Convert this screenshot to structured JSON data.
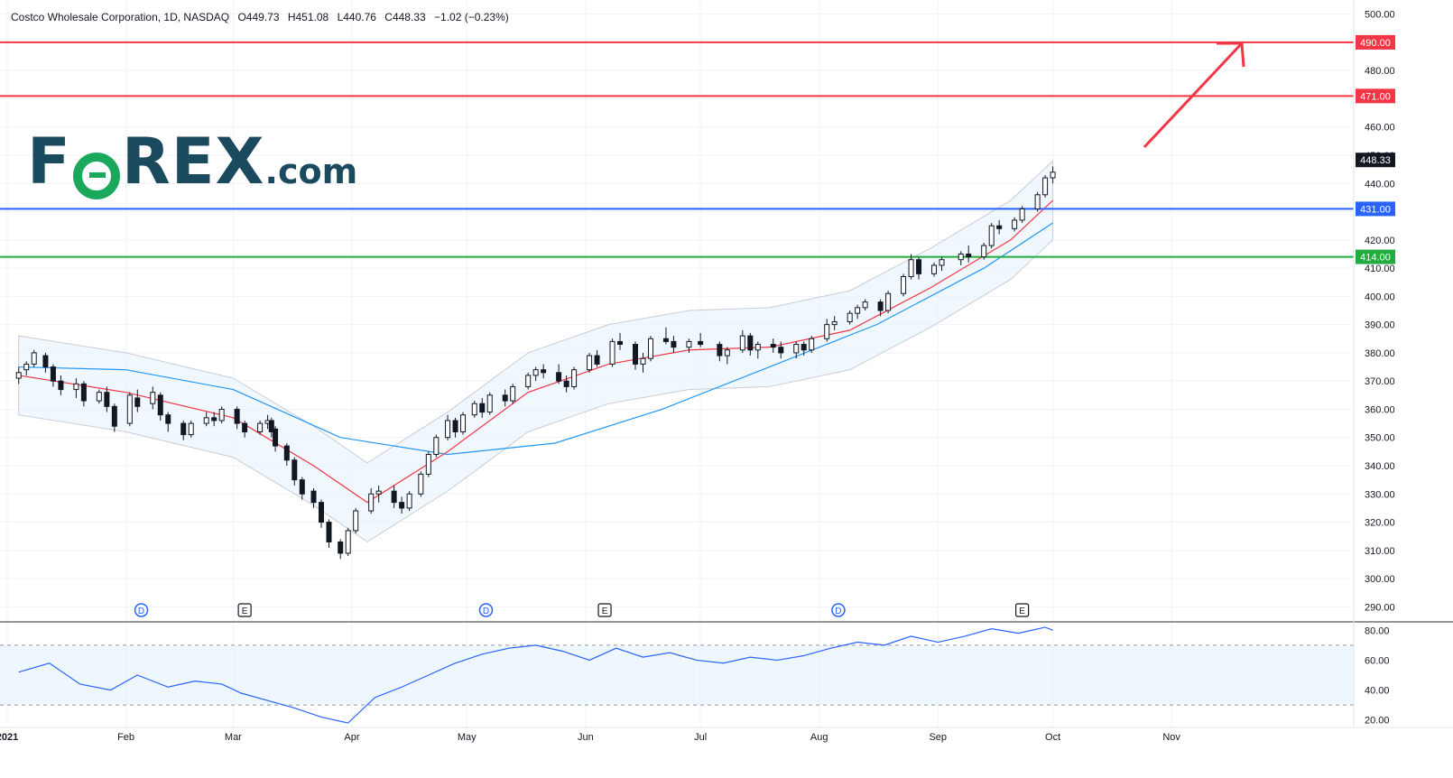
{
  "header": {
    "symbol": "Costco Wholesale Corporation, 1D, NASDAQ",
    "open": "O449.73",
    "high": "H451.08",
    "low": "L440.76",
    "close": "C448.33",
    "change": "−1.02 (−0.23%)"
  },
  "logo": {
    "text_pre": "F",
    "text_post": "REX",
    "domain": ".com"
  },
  "colors": {
    "up_body": "#ffffff",
    "down_body": "#131722",
    "ma20": "#f23645",
    "ma50": "#2196f3",
    "band": "#e3f2fd",
    "level_red": "#f23645",
    "level_blue": "#2962ff",
    "level_green": "#22ab3f",
    "rsi_line": "#2962ff",
    "rsi_fill": "#e3f2fd",
    "logo_text": "#1b4a5e",
    "logo_accent": "#1aa85c"
  },
  "chart_data": {
    "type": "candlestick",
    "price_axis": {
      "range": [
        285,
        505
      ],
      "ticks": [
        290,
        300,
        310,
        320,
        330,
        340,
        350,
        360,
        370,
        380,
        390,
        400,
        410,
        420,
        430,
        440,
        450,
        460,
        470,
        480,
        490,
        500
      ],
      "tick_labels": [
        "290.00",
        "300.00",
        "310.00",
        "320.00",
        "330.00",
        "340.00",
        "350.00",
        "360.00",
        "370.00",
        "380.00",
        "390.00",
        "400.00",
        "410.00",
        "420.00",
        "430.00",
        "440.00",
        "450.00",
        "460.00",
        "470.00",
        "480.00",
        "490.00",
        "500.00"
      ]
    },
    "x_axis": {
      "start": "2021-01-01",
      "end": "2021-11-25",
      "ticks": [
        "2021-01-01",
        "2021-02-01",
        "2021-03-01",
        "2021-04-01",
        "2021-05-01",
        "2021-06-01",
        "2021-07-01",
        "2021-08-01",
        "2021-09-01",
        "2021-10-01",
        "2021-11-01"
      ],
      "tick_labels": [
        "2021",
        "Feb",
        "Mar",
        "Apr",
        "May",
        "Jun",
        "Jul",
        "Aug",
        "Sep",
        "Oct",
        "Nov"
      ]
    },
    "candles": [
      {
        "d": "2021-01-04",
        "o": 371,
        "h": 375,
        "l": 369,
        "c": 373
      },
      {
        "d": "2021-01-06",
        "o": 374,
        "h": 377,
        "l": 372,
        "c": 376
      },
      {
        "d": "2021-01-08",
        "o": 376,
        "h": 381,
        "l": 375,
        "c": 380
      },
      {
        "d": "2021-01-11",
        "o": 379,
        "h": 380,
        "l": 373,
        "c": 375
      },
      {
        "d": "2021-01-13",
        "o": 375,
        "h": 376,
        "l": 368,
        "c": 370
      },
      {
        "d": "2021-01-15",
        "o": 370,
        "h": 372,
        "l": 365,
        "c": 367
      },
      {
        "d": "2021-01-19",
        "o": 367,
        "h": 371,
        "l": 364,
        "c": 369
      },
      {
        "d": "2021-01-21",
        "o": 369,
        "h": 370,
        "l": 361,
        "c": 363
      },
      {
        "d": "2021-01-25",
        "o": 363,
        "h": 367,
        "l": 362,
        "c": 366
      },
      {
        "d": "2021-01-27",
        "o": 366,
        "h": 368,
        "l": 359,
        "c": 361
      },
      {
        "d": "2021-01-29",
        "o": 361,
        "h": 362,
        "l": 352,
        "c": 354
      },
      {
        "d": "2021-02-02",
        "o": 355,
        "h": 366,
        "l": 354,
        "c": 365
      },
      {
        "d": "2021-02-04",
        "o": 364,
        "h": 367,
        "l": 359,
        "c": 361
      },
      {
        "d": "2021-02-08",
        "o": 362,
        "h": 368,
        "l": 360,
        "c": 366
      },
      {
        "d": "2021-02-10",
        "o": 365,
        "h": 366,
        "l": 356,
        "c": 358
      },
      {
        "d": "2021-02-12",
        "o": 358,
        "h": 359,
        "l": 352,
        "c": 355
      },
      {
        "d": "2021-02-16",
        "o": 355,
        "h": 356,
        "l": 349,
        "c": 351
      },
      {
        "d": "2021-02-18",
        "o": 351,
        "h": 356,
        "l": 350,
        "c": 355
      },
      {
        "d": "2021-02-22",
        "o": 355,
        "h": 359,
        "l": 354,
        "c": 357
      },
      {
        "d": "2021-02-24",
        "o": 357,
        "h": 359,
        "l": 354,
        "c": 356
      },
      {
        "d": "2021-02-26",
        "o": 356,
        "h": 361,
        "l": 355,
        "c": 360
      },
      {
        "d": "2021-03-02",
        "o": 360,
        "h": 361,
        "l": 353,
        "c": 355
      },
      {
        "d": "2021-03-04",
        "o": 355,
        "h": 356,
        "l": 350,
        "c": 352
      },
      {
        "d": "2021-03-08",
        "o": 352,
        "h": 356,
        "l": 351,
        "c": 355
      },
      {
        "d": "2021-03-10",
        "o": 355,
        "h": 358,
        "l": 353,
        "c": 356
      },
      {
        "d": "2021-03-11",
        "o": 356,
        "h": 357,
        "l": 350,
        "c": 352
      },
      {
        "d": "2021-03-12",
        "o": 353,
        "h": 354,
        "l": 345,
        "c": 347
      },
      {
        "d": "2021-03-15",
        "o": 347,
        "h": 348,
        "l": 340,
        "c": 342
      },
      {
        "d": "2021-03-17",
        "o": 342,
        "h": 343,
        "l": 333,
        "c": 335
      },
      {
        "d": "2021-03-19",
        "o": 335,
        "h": 336,
        "l": 328,
        "c": 330
      },
      {
        "d": "2021-03-22",
        "o": 331,
        "h": 332,
        "l": 325,
        "c": 327
      },
      {
        "d": "2021-03-24",
        "o": 327,
        "h": 328,
        "l": 318,
        "c": 320
      },
      {
        "d": "2021-03-26",
        "o": 320,
        "h": 321,
        "l": 311,
        "c": 313
      },
      {
        "d": "2021-03-29",
        "o": 313,
        "h": 314,
        "l": 307,
        "c": 309
      },
      {
        "d": "2021-03-31",
        "o": 309,
        "h": 318,
        "l": 308,
        "c": 317
      },
      {
        "d": "2021-04-02",
        "o": 317,
        "h": 325,
        "l": 316,
        "c": 324
      },
      {
        "d": "2021-04-06",
        "o": 324,
        "h": 332,
        "l": 323,
        "c": 330
      },
      {
        "d": "2021-04-08",
        "o": 330,
        "h": 333,
        "l": 327,
        "c": 331
      },
      {
        "d": "2021-04-12",
        "o": 331,
        "h": 333,
        "l": 325,
        "c": 327
      },
      {
        "d": "2021-04-14",
        "o": 327,
        "h": 329,
        "l": 323,
        "c": 325
      },
      {
        "d": "2021-04-16",
        "o": 325,
        "h": 331,
        "l": 324,
        "c": 330
      },
      {
        "d": "2021-04-19",
        "o": 330,
        "h": 338,
        "l": 329,
        "c": 337
      },
      {
        "d": "2021-04-21",
        "o": 337,
        "h": 345,
        "l": 336,
        "c": 344
      },
      {
        "d": "2021-04-23",
        "o": 344,
        "h": 351,
        "l": 343,
        "c": 350
      },
      {
        "d": "2021-04-26",
        "o": 350,
        "h": 358,
        "l": 349,
        "c": 356
      },
      {
        "d": "2021-04-28",
        "o": 356,
        "h": 357,
        "l": 350,
        "c": 352
      },
      {
        "d": "2021-04-30",
        "o": 352,
        "h": 359,
        "l": 351,
        "c": 358
      },
      {
        "d": "2021-05-03",
        "o": 358,
        "h": 363,
        "l": 357,
        "c": 362
      },
      {
        "d": "2021-05-05",
        "o": 362,
        "h": 364,
        "l": 357,
        "c": 359
      },
      {
        "d": "2021-05-07",
        "o": 359,
        "h": 366,
        "l": 358,
        "c": 365
      },
      {
        "d": "2021-05-11",
        "o": 365,
        "h": 367,
        "l": 361,
        "c": 363
      },
      {
        "d": "2021-05-13",
        "o": 363,
        "h": 369,
        "l": 362,
        "c": 368
      },
      {
        "d": "2021-05-17",
        "o": 368,
        "h": 373,
        "l": 367,
        "c": 372
      },
      {
        "d": "2021-05-19",
        "o": 372,
        "h": 375,
        "l": 370,
        "c": 374
      },
      {
        "d": "2021-05-21",
        "o": 374,
        "h": 376,
        "l": 371,
        "c": 373
      },
      {
        "d": "2021-05-25",
        "o": 373,
        "h": 376,
        "l": 369,
        "c": 370
      },
      {
        "d": "2021-05-27",
        "o": 370,
        "h": 372,
        "l": 366,
        "c": 368
      },
      {
        "d": "2021-05-29",
        "o": 368,
        "h": 375,
        "l": 367,
        "c": 374
      },
      {
        "d": "2021-06-02",
        "o": 374,
        "h": 380,
        "l": 373,
        "c": 379
      },
      {
        "d": "2021-06-04",
        "o": 379,
        "h": 381,
        "l": 375,
        "c": 376
      },
      {
        "d": "2021-06-08",
        "o": 376,
        "h": 385,
        "l": 375,
        "c": 384
      },
      {
        "d": "2021-06-10",
        "o": 384,
        "h": 387,
        "l": 381,
        "c": 383
      },
      {
        "d": "2021-06-14",
        "o": 383,
        "h": 384,
        "l": 374,
        "c": 376
      },
      {
        "d": "2021-06-16",
        "o": 376,
        "h": 380,
        "l": 373,
        "c": 378
      },
      {
        "d": "2021-06-18",
        "o": 378,
        "h": 386,
        "l": 377,
        "c": 385
      },
      {
        "d": "2021-06-22",
        "o": 385,
        "h": 389,
        "l": 383,
        "c": 384
      },
      {
        "d": "2021-06-24",
        "o": 384,
        "h": 386,
        "l": 380,
        "c": 382
      },
      {
        "d": "2021-06-28",
        "o": 382,
        "h": 385,
        "l": 380,
        "c": 384
      },
      {
        "d": "2021-07-01",
        "o": 384,
        "h": 387,
        "l": 382,
        "c": 383
      },
      {
        "d": "2021-07-06",
        "o": 383,
        "h": 384,
        "l": 377,
        "c": 379
      },
      {
        "d": "2021-07-08",
        "o": 379,
        "h": 382,
        "l": 376,
        "c": 381
      },
      {
        "d": "2021-07-12",
        "o": 381,
        "h": 388,
        "l": 380,
        "c": 386
      },
      {
        "d": "2021-07-14",
        "o": 386,
        "h": 387,
        "l": 379,
        "c": 381
      },
      {
        "d": "2021-07-16",
        "o": 381,
        "h": 384,
        "l": 378,
        "c": 383
      },
      {
        "d": "2021-07-20",
        "o": 383,
        "h": 385,
        "l": 380,
        "c": 382
      },
      {
        "d": "2021-07-22",
        "o": 382,
        "h": 384,
        "l": 378,
        "c": 380
      },
      {
        "d": "2021-07-26",
        "o": 380,
        "h": 384,
        "l": 378,
        "c": 383
      },
      {
        "d": "2021-07-28",
        "o": 383,
        "h": 384,
        "l": 379,
        "c": 381
      },
      {
        "d": "2021-07-30",
        "o": 381,
        "h": 386,
        "l": 380,
        "c": 385
      },
      {
        "d": "2021-08-03",
        "o": 385,
        "h": 392,
        "l": 384,
        "c": 390
      },
      {
        "d": "2021-08-05",
        "o": 390,
        "h": 393,
        "l": 388,
        "c": 391
      },
      {
        "d": "2021-08-09",
        "o": 391,
        "h": 395,
        "l": 390,
        "c": 394
      },
      {
        "d": "2021-08-11",
        "o": 394,
        "h": 397,
        "l": 392,
        "c": 396
      },
      {
        "d": "2021-08-13",
        "o": 396,
        "h": 399,
        "l": 395,
        "c": 398
      },
      {
        "d": "2021-08-17",
        "o": 398,
        "h": 399,
        "l": 393,
        "c": 395
      },
      {
        "d": "2021-08-19",
        "o": 395,
        "h": 402,
        "l": 394,
        "c": 401
      },
      {
        "d": "2021-08-23",
        "o": 401,
        "h": 408,
        "l": 400,
        "c": 407
      },
      {
        "d": "2021-08-25",
        "o": 407,
        "h": 415,
        "l": 406,
        "c": 413
      },
      {
        "d": "2021-08-27",
        "o": 413,
        "h": 414,
        "l": 406,
        "c": 408
      },
      {
        "d": "2021-08-31",
        "o": 408,
        "h": 412,
        "l": 407,
        "c": 411
      },
      {
        "d": "2021-09-02",
        "o": 411,
        "h": 414,
        "l": 409,
        "c": 413
      },
      {
        "d": "2021-09-07",
        "o": 413,
        "h": 416,
        "l": 411,
        "c": 415
      },
      {
        "d": "2021-09-09",
        "o": 415,
        "h": 418,
        "l": 412,
        "c": 414
      },
      {
        "d": "2021-09-13",
        "o": 414,
        "h": 419,
        "l": 413,
        "c": 418
      },
      {
        "d": "2021-09-15",
        "o": 418,
        "h": 426,
        "l": 417,
        "c": 425
      },
      {
        "d": "2021-09-17",
        "o": 425,
        "h": 427,
        "l": 422,
        "c": 424
      },
      {
        "d": "2021-09-21",
        "o": 424,
        "h": 428,
        "l": 423,
        "c": 427
      },
      {
        "d": "2021-09-23",
        "o": 427,
        "h": 432,
        "l": 426,
        "c": 431
      },
      {
        "d": "2021-09-27",
        "o": 431,
        "h": 437,
        "l": 430,
        "c": 436
      },
      {
        "d": "2021-09-29",
        "o": 436,
        "h": 443,
        "l": 435,
        "c": 442
      },
      {
        "d": "2021-10-01",
        "o": 442,
        "h": 446,
        "l": 440,
        "c": 444
      }
    ],
    "ma20": [
      [
        "2021-01-04",
        372
      ],
      [
        "2021-02-01",
        366
      ],
      [
        "2021-03-01",
        357
      ],
      [
        "2021-03-22",
        340
      ],
      [
        "2021-04-05",
        327
      ],
      [
        "2021-04-26",
        345
      ],
      [
        "2021-05-17",
        366
      ],
      [
        "2021-06-07",
        376
      ],
      [
        "2021-06-28",
        381
      ],
      [
        "2021-07-19",
        382
      ],
      [
        "2021-08-09",
        388
      ],
      [
        "2021-08-30",
        403
      ],
      [
        "2021-09-20",
        420
      ],
      [
        "2021-10-01",
        434
      ]
    ],
    "ma50": [
      [
        "2021-01-04",
        375
      ],
      [
        "2021-02-01",
        374
      ],
      [
        "2021-03-01",
        367
      ],
      [
        "2021-03-29",
        350
      ],
      [
        "2021-04-26",
        344
      ],
      [
        "2021-05-24",
        348
      ],
      [
        "2021-06-21",
        360
      ],
      [
        "2021-07-19",
        375
      ],
      [
        "2021-08-16",
        390
      ],
      [
        "2021-09-13",
        410
      ],
      [
        "2021-10-01",
        426
      ]
    ],
    "levels": [
      {
        "value": 490,
        "label": "490.00",
        "color": "#f23645"
      },
      {
        "value": 471,
        "label": "471.00",
        "color": "#f23645"
      },
      {
        "value": 431,
        "label": "431.00",
        "color": "#2962ff"
      },
      {
        "value": 414,
        "label": "414.00",
        "color": "#22ab3f"
      }
    ],
    "last_price": {
      "value": 448.33,
      "label": "448.33"
    },
    "markers": [
      {
        "d": "2021-02-05",
        "letter": "D",
        "kind": "dividend"
      },
      {
        "d": "2021-03-04",
        "letter": "E",
        "kind": "earnings"
      },
      {
        "d": "2021-05-06",
        "letter": "D",
        "kind": "dividend"
      },
      {
        "d": "2021-06-06",
        "letter": "E",
        "kind": "earnings"
      },
      {
        "d": "2021-08-06",
        "letter": "D",
        "kind": "dividend"
      },
      {
        "d": "2021-09-23",
        "letter": "E",
        "kind": "earnings"
      }
    ],
    "rsi": {
      "range": [
        15,
        85
      ],
      "ticks": [
        20,
        40,
        60,
        80
      ],
      "tick_labels": [
        "20.00",
        "40.00",
        "60.00",
        "80.00"
      ],
      "bands": [
        30,
        70
      ],
      "values": [
        [
          "2021-01-04",
          52
        ],
        [
          "2021-01-12",
          58
        ],
        [
          "2021-01-20",
          44
        ],
        [
          "2021-01-28",
          40
        ],
        [
          "2021-02-04",
          50
        ],
        [
          "2021-02-12",
          42
        ],
        [
          "2021-02-19",
          46
        ],
        [
          "2021-02-26",
          44
        ],
        [
          "2021-03-03",
          38
        ],
        [
          "2021-03-10",
          33
        ],
        [
          "2021-03-17",
          28
        ],
        [
          "2021-03-24",
          22
        ],
        [
          "2021-03-31",
          18
        ],
        [
          "2021-04-07",
          35
        ],
        [
          "2021-04-14",
          42
        ],
        [
          "2021-04-21",
          50
        ],
        [
          "2021-04-28",
          58
        ],
        [
          "2021-05-05",
          64
        ],
        [
          "2021-05-12",
          68
        ],
        [
          "2021-05-19",
          70
        ],
        [
          "2021-05-26",
          66
        ],
        [
          "2021-06-02",
          60
        ],
        [
          "2021-06-09",
          68
        ],
        [
          "2021-06-16",
          62
        ],
        [
          "2021-06-23",
          65
        ],
        [
          "2021-06-30",
          60
        ],
        [
          "2021-07-07",
          58
        ],
        [
          "2021-07-14",
          62
        ],
        [
          "2021-07-21",
          60
        ],
        [
          "2021-07-28",
          63
        ],
        [
          "2021-08-04",
          68
        ],
        [
          "2021-08-11",
          72
        ],
        [
          "2021-08-18",
          70
        ],
        [
          "2021-08-25",
          76
        ],
        [
          "2021-09-01",
          72
        ],
        [
          "2021-09-08",
          76
        ],
        [
          "2021-09-15",
          81
        ],
        [
          "2021-09-22",
          78
        ],
        [
          "2021-09-29",
          82
        ],
        [
          "2021-10-01",
          80
        ]
      ]
    }
  }
}
